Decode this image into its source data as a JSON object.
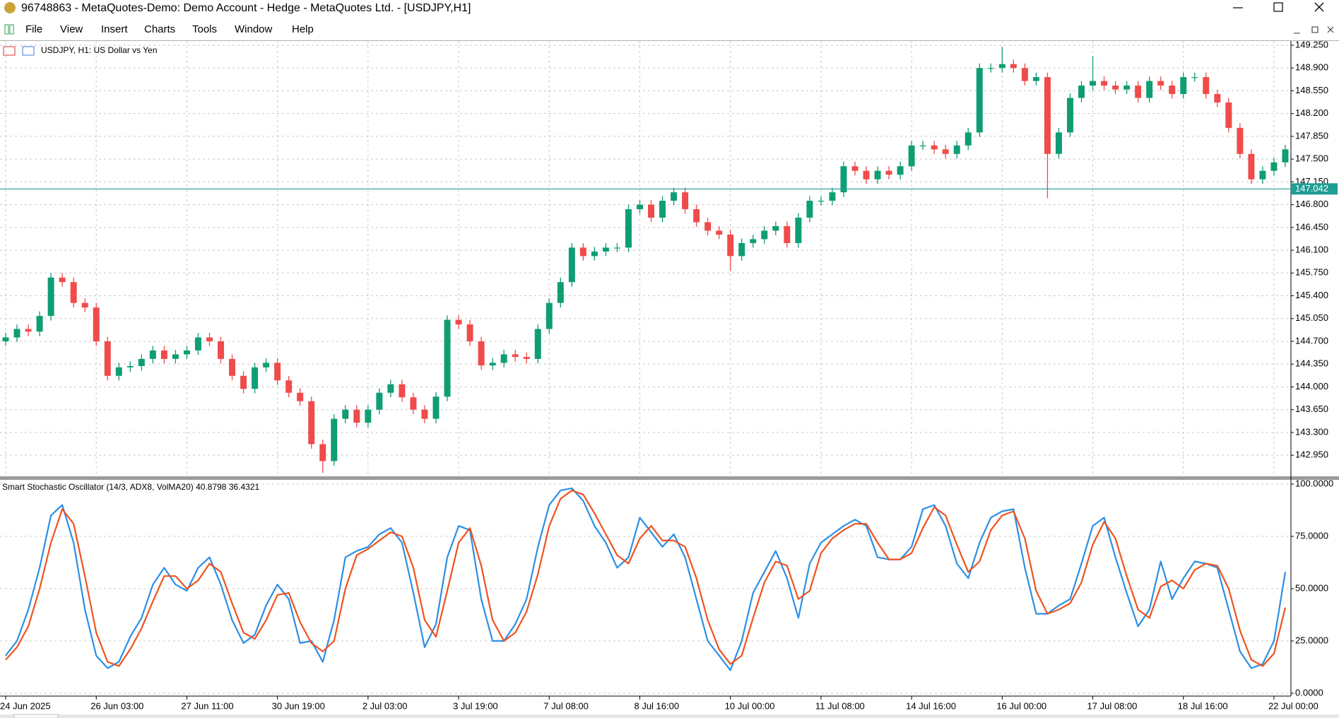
{
  "window": {
    "title": "96748863 - MetaQuotes-Demo: Demo Account - Hedge - MetaQuotes Ltd. - [USDJPY,H1]"
  },
  "menu": [
    "File",
    "View",
    "Insert",
    "Charts",
    "Tools",
    "Window",
    "Help"
  ],
  "chart_data": [
    {
      "type": "candlestick",
      "title": "USDJPY, H1:  US Dollar vs Yen",
      "categories": [
        "24 Jun 2025",
        null,
        null,
        null,
        null,
        null,
        null,
        null,
        "26 Jun 03:00",
        null,
        null,
        null,
        null,
        null,
        null,
        null,
        "27 Jun 11:00",
        null,
        null,
        null,
        null,
        null,
        null,
        null,
        "30 Jun 19:00",
        null,
        null,
        null,
        null,
        null,
        null,
        null,
        "2 Jul 03:00",
        null,
        null,
        null,
        null,
        null,
        null,
        null,
        "3 Jul 19:00",
        null,
        null,
        null,
        null,
        null,
        null,
        null,
        "7 Jul 08:00",
        null,
        null,
        null,
        null,
        null,
        null,
        null,
        "8 Jul 16:00",
        null,
        null,
        null,
        null,
        null,
        null,
        null,
        "10 Jul 00:00",
        null,
        null,
        null,
        null,
        null,
        null,
        null,
        "11 Jul 08:00",
        null,
        null,
        null,
        null,
        null,
        null,
        null,
        "14 Jul 16:00",
        null,
        null,
        null,
        null,
        null,
        null,
        null,
        "16 Jul 00:00",
        null,
        null,
        null,
        null,
        null,
        null,
        null,
        "17 Jul 08:00",
        null,
        null,
        null,
        null,
        null,
        null,
        null,
        "18 Jul 16:00",
        null,
        null,
        null,
        null,
        null,
        null,
        null,
        "22 Jul 00:00",
        null
      ],
      "open": [
        144.7,
        144.76,
        144.89,
        144.85,
        145.09,
        145.68,
        145.61,
        145.29,
        145.22,
        144.7,
        144.17,
        144.3,
        144.32,
        144.43,
        144.56,
        144.43,
        144.5,
        144.56,
        144.76,
        144.7,
        144.43,
        144.17,
        143.97,
        144.3,
        144.37,
        144.1,
        143.91,
        143.78,
        143.12,
        142.86,
        143.51,
        143.65,
        143.45,
        143.65,
        143.91,
        144.04,
        143.84,
        143.65,
        143.51,
        143.85,
        145.03,
        144.96,
        144.7,
        144.33,
        144.37,
        144.5,
        144.46,
        144.43,
        144.89,
        145.29,
        145.61,
        146.14,
        146.01,
        146.08,
        146.14,
        146.14,
        146.73,
        146.8,
        146.6,
        146.86,
        146.99,
        146.73,
        146.53,
        146.4,
        146.34,
        146.01,
        146.21,
        146.27,
        146.4,
        146.47,
        146.21,
        146.6,
        146.86,
        146.86,
        146.99,
        147.39,
        147.32,
        147.19,
        147.32,
        147.26,
        147.39,
        147.71,
        147.71,
        147.65,
        147.58,
        147.71,
        147.91,
        148.9,
        148.9,
        148.96,
        148.9,
        148.7,
        148.76,
        147.58,
        147.91,
        148.44,
        148.63,
        148.7,
        148.63,
        148.57,
        148.63,
        148.44,
        148.7,
        148.63,
        148.5,
        148.76,
        148.76,
        148.5,
        148.37,
        147.98,
        147.58,
        147.19,
        147.32,
        147.45
      ],
      "high": [
        144.83,
        144.96,
        144.96,
        145.16,
        145.75,
        145.75,
        145.68,
        145.36,
        145.29,
        144.77,
        144.37,
        144.39,
        144.5,
        144.63,
        144.63,
        144.57,
        144.63,
        144.83,
        144.83,
        144.77,
        144.5,
        144.24,
        144.37,
        144.44,
        144.44,
        144.17,
        143.98,
        143.85,
        143.19,
        143.58,
        143.72,
        143.72,
        143.72,
        143.98,
        144.11,
        144.11,
        143.91,
        143.72,
        143.92,
        145.1,
        145.1,
        145.03,
        144.77,
        144.44,
        144.57,
        144.57,
        144.53,
        144.96,
        145.36,
        145.68,
        146.21,
        146.21,
        146.15,
        146.21,
        146.21,
        146.8,
        146.87,
        146.87,
        146.93,
        147.06,
        147.06,
        146.8,
        146.6,
        146.47,
        146.41,
        146.28,
        146.34,
        146.47,
        146.54,
        146.54,
        146.67,
        146.93,
        146.93,
        147.06,
        147.46,
        147.46,
        147.39,
        147.39,
        147.39,
        147.46,
        147.78,
        147.78,
        147.78,
        147.72,
        147.78,
        147.98,
        148.97,
        148.97,
        149.22,
        149.03,
        148.97,
        148.83,
        148.83,
        147.98,
        148.51,
        148.7,
        149.08,
        148.77,
        148.7,
        148.7,
        148.7,
        148.77,
        148.77,
        148.7,
        148.83,
        148.83,
        148.83,
        148.57,
        148.44,
        148.05,
        147.65,
        147.39,
        147.52,
        147.72
      ],
      "low": [
        144.63,
        144.69,
        144.78,
        144.78,
        145.02,
        145.54,
        145.22,
        145.15,
        144.63,
        144.1,
        144.1,
        144.23,
        144.25,
        144.36,
        144.36,
        144.36,
        144.43,
        144.49,
        144.63,
        144.36,
        144.1,
        143.9,
        143.9,
        144.23,
        144.03,
        143.84,
        143.71,
        143.05,
        142.68,
        142.79,
        143.44,
        143.38,
        143.38,
        143.58,
        143.84,
        143.77,
        143.58,
        143.44,
        143.44,
        143.78,
        144.89,
        144.63,
        144.26,
        144.26,
        144.3,
        144.39,
        144.36,
        144.36,
        144.82,
        145.22,
        145.54,
        145.94,
        145.94,
        146.01,
        146.07,
        146.07,
        146.66,
        146.53,
        146.53,
        146.79,
        146.66,
        146.46,
        146.33,
        146.27,
        145.78,
        145.94,
        146.14,
        146.2,
        146.33,
        146.14,
        146.14,
        146.53,
        146.79,
        146.79,
        146.92,
        147.25,
        147.12,
        147.12,
        147.19,
        147.19,
        147.32,
        147.64,
        147.58,
        147.51,
        147.51,
        147.64,
        147.84,
        148.83,
        148.83,
        148.83,
        148.63,
        148.63,
        146.9,
        147.51,
        147.84,
        148.37,
        148.56,
        148.56,
        148.5,
        148.5,
        148.37,
        148.37,
        148.56,
        148.43,
        148.43,
        148.69,
        148.43,
        148.3,
        147.91,
        147.51,
        147.12,
        147.12,
        147.25,
        147.38
      ],
      "close": [
        144.76,
        144.89,
        144.85,
        145.09,
        145.68,
        145.61,
        145.29,
        145.22,
        144.7,
        144.17,
        144.3,
        144.32,
        144.43,
        144.56,
        144.43,
        144.5,
        144.56,
        144.76,
        144.7,
        144.43,
        144.17,
        143.97,
        144.3,
        144.37,
        144.1,
        143.91,
        143.78,
        143.12,
        142.86,
        143.51,
        143.65,
        143.45,
        143.65,
        143.91,
        144.04,
        143.84,
        143.65,
        143.51,
        143.85,
        145.03,
        144.96,
        144.7,
        144.33,
        144.37,
        144.5,
        144.46,
        144.43,
        144.89,
        145.29,
        145.61,
        146.14,
        146.01,
        146.08,
        146.14,
        146.14,
        146.73,
        146.8,
        146.6,
        146.86,
        146.99,
        146.73,
        146.53,
        146.4,
        146.34,
        146.01,
        146.21,
        146.27,
        146.4,
        146.47,
        146.21,
        146.6,
        146.86,
        146.86,
        146.99,
        147.39,
        147.32,
        147.19,
        147.32,
        147.26,
        147.39,
        147.71,
        147.71,
        147.65,
        147.58,
        147.71,
        147.91,
        148.9,
        148.9,
        148.96,
        148.9,
        148.7,
        148.76,
        147.58,
        147.91,
        148.44,
        148.63,
        148.7,
        148.63,
        148.57,
        148.63,
        148.44,
        148.7,
        148.63,
        148.5,
        148.76,
        148.76,
        148.5,
        148.37,
        147.98,
        147.58,
        147.19,
        147.32,
        147.45,
        147.65
      ],
      "up_color": "#0f9d74",
      "down_color": "#ef4b4b",
      "ylim": [
        142.626,
        149.315
      ],
      "yticks": [
        {
          "value": 149.25,
          "label": "149.250"
        },
        {
          "value": 148.9,
          "label": "148.900"
        },
        {
          "value": 148.55,
          "label": "148.550"
        },
        {
          "value": 148.2,
          "label": "148.200"
        },
        {
          "value": 147.85,
          "label": "147.850"
        },
        {
          "value": 147.5,
          "label": "147.500"
        },
        {
          "value": 147.15,
          "label": "147.150"
        },
        {
          "value": 146.8,
          "label": "146.800"
        },
        {
          "value": 146.45,
          "label": "146.450"
        },
        {
          "value": 146.1,
          "label": "146.100"
        },
        {
          "value": 145.75,
          "label": "145.750"
        },
        {
          "value": 145.4,
          "label": "145.400"
        },
        {
          "value": 145.05,
          "label": "145.050"
        },
        {
          "value": 144.7,
          "label": "144.700"
        },
        {
          "value": 144.35,
          "label": "144.350"
        },
        {
          "value": 144.0,
          "label": "144.000"
        },
        {
          "value": 143.65,
          "label": "143.650"
        },
        {
          "value": 143.3,
          "label": "143.300"
        },
        {
          "value": 142.95,
          "label": "142.950"
        }
      ],
      "grid": true,
      "price_line": 147.042,
      "price_line_color": "#1f9e94"
    },
    {
      "type": "line",
      "title": "Smart Stochastic Oscillator (14/3, ADX8, VolMA20) 40.8798 36.4321",
      "series": [
        {
          "color": "#2b8fe6",
          "values": [
            18,
            25,
            40,
            60,
            85,
            90,
            72,
            40,
            18,
            12,
            15,
            27,
            36,
            52,
            60,
            52,
            49,
            60,
            65,
            52,
            35,
            24,
            28,
            42,
            52,
            45,
            24,
            25,
            15,
            35,
            65,
            68,
            70,
            76,
            79,
            72,
            48,
            22,
            33,
            65,
            80,
            78,
            45,
            25,
            25,
            33,
            45,
            70,
            90,
            97,
            98,
            92,
            80,
            72,
            60,
            65,
            84,
            77,
            70,
            76,
            65,
            45,
            25,
            18,
            11,
            25,
            48,
            58,
            68,
            55,
            36,
            62,
            72,
            76,
            80,
            83,
            80,
            65,
            64,
            64,
            70,
            88,
            90,
            80,
            62,
            55,
            72,
            84,
            87,
            88,
            60,
            38,
            38,
            42,
            45,
            62,
            80,
            84,
            65,
            48,
            32,
            40,
            63,
            45,
            55,
            63,
            62,
            60,
            40,
            20,
            12,
            14,
            25,
            58
          ]
        },
        {
          "color": "#f0521e",
          "values": [
            16,
            22,
            32,
            50,
            72,
            88,
            81,
            56,
            29,
            15,
            13,
            21,
            31,
            44,
            56,
            56,
            50,
            54,
            62,
            58,
            43,
            29,
            26,
            35,
            47,
            48,
            34,
            24,
            20,
            25,
            50,
            66,
            69,
            73,
            77,
            75,
            60,
            35,
            27,
            49,
            72,
            79,
            61,
            35,
            25,
            29,
            39,
            57,
            80,
            93,
            97,
            95,
            86,
            76,
            66,
            62,
            74,
            80,
            73,
            73,
            70,
            55,
            35,
            21,
            14,
            18,
            36,
            53,
            63,
            61,
            45,
            49,
            67,
            74,
            78,
            81,
            81,
            72,
            64,
            64,
            67,
            79,
            89,
            85,
            71,
            58,
            63,
            78,
            85,
            87,
            74,
            49,
            38,
            40,
            43,
            53,
            71,
            82,
            74,
            56,
            40,
            36,
            51,
            54,
            50,
            59,
            62,
            61,
            50,
            30,
            16,
            13,
            19,
            41
          ]
        }
      ],
      "ylim": [
        -1.35,
        102.03
      ],
      "yticks": [
        {
          "value": 100,
          "label": "100.0000"
        },
        {
          "value": 75,
          "label": "75.0000"
        },
        {
          "value": 50,
          "label": "50.0000"
        },
        {
          "value": 25,
          "label": "25.0000"
        },
        {
          "value": 0,
          "label": "0.0000"
        }
      ],
      "grid": true
    }
  ]
}
